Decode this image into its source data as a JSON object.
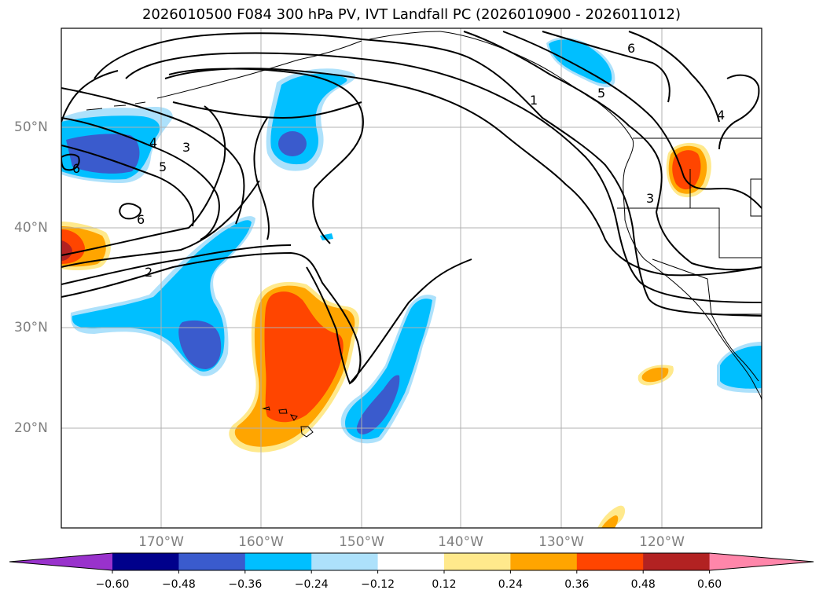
{
  "title": "2026010500 F084 300 hPa PV, IVT Landfall PC (2026010900 - 2026011012)",
  "map": {
    "lat_ticks": [
      "50°N",
      "40°N",
      "30°N",
      "20°N"
    ],
    "lon_ticks": [
      "170°W",
      "160°W",
      "150°W",
      "140°W",
      "130°W",
      "120°W"
    ],
    "pv_contour_labels": [
      "6",
      "3",
      "5",
      "6",
      "2",
      "4",
      "1",
      "5",
      "6",
      "4",
      "3"
    ],
    "shading_variable": "IVT Landfall PC",
    "contour_variable": "300 hPa PV"
  },
  "colorbar": {
    "tick_labels": [
      "−0.60",
      "−0.48",
      "−0.36",
      "−0.24",
      "−0.12",
      "0.12",
      "0.24",
      "0.36",
      "0.48",
      "0.60"
    ],
    "levels": [
      -0.6,
      -0.48,
      -0.36,
      -0.24,
      -0.12,
      0.12,
      0.24,
      0.36,
      0.48,
      0.6
    ],
    "colors": [
      "#9932cc",
      "#00008b",
      "#3a5bcd",
      "#00bfff",
      "#ade1fb",
      "#ffffff",
      "#ffe98c",
      "#ffa500",
      "#ff4500",
      "#b22222",
      "#ff86aa"
    ],
    "extend": "both"
  }
}
